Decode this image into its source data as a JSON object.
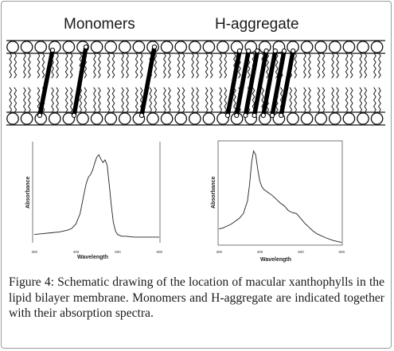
{
  "diagram": {
    "labels": {
      "monomers": "Monomers",
      "h_aggregate": "H-aggregate"
    }
  },
  "chart_data": [
    {
      "type": "line",
      "title": "",
      "xlabel": "Wavelength",
      "ylabel": "Absorbance",
      "xlim": [
        300,
        600
      ],
      "x_ticks": [
        "300",
        "400",
        "500",
        "600"
      ],
      "series": [
        {
          "x": [
            300,
            320,
            340,
            360,
            380,
            390,
            400,
            410,
            415,
            420,
            425,
            430,
            435,
            440,
            445,
            450,
            455,
            460,
            465,
            470,
            475,
            480,
            485,
            490,
            495,
            500,
            505,
            510,
            515,
            520,
            540,
            560,
            580,
            600
          ],
          "y": [
            0.04,
            0.05,
            0.06,
            0.07,
            0.09,
            0.11,
            0.16,
            0.28,
            0.4,
            0.52,
            0.63,
            0.7,
            0.73,
            0.78,
            0.86,
            0.93,
            0.96,
            0.91,
            0.87,
            0.9,
            0.84,
            0.62,
            0.38,
            0.18,
            0.08,
            0.04,
            0.03,
            0.02,
            0.02,
            0.02,
            0.01,
            0.01,
            0.01,
            0.01
          ]
        }
      ]
    },
    {
      "type": "line",
      "title": "",
      "xlabel": "Wavelength",
      "ylabel": "Absorbance",
      "xlim": [
        300,
        600
      ],
      "x_ticks": [
        "300",
        "400",
        "500",
        "600"
      ],
      "series": [
        {
          "x": [
            300,
            310,
            320,
            330,
            340,
            350,
            360,
            370,
            375,
            380,
            385,
            390,
            395,
            400,
            405,
            410,
            420,
            430,
            440,
            450,
            460,
            470,
            480,
            490,
            500,
            510,
            520,
            530,
            540,
            560,
            580,
            600
          ],
          "y": [
            0.16,
            0.17,
            0.19,
            0.21,
            0.24,
            0.27,
            0.32,
            0.45,
            0.62,
            0.85,
            0.97,
            0.93,
            0.78,
            0.66,
            0.6,
            0.57,
            0.54,
            0.51,
            0.47,
            0.43,
            0.4,
            0.35,
            0.33,
            0.32,
            0.27,
            0.22,
            0.18,
            0.14,
            0.11,
            0.07,
            0.04,
            0.02
          ]
        }
      ]
    }
  ],
  "caption": {
    "text": "Figure 4: Schematic drawing of the location of macular xanthophylls in the lipid bilayer membrane. Monomers and H-aggregate are indicated together with their absorption spectra."
  }
}
